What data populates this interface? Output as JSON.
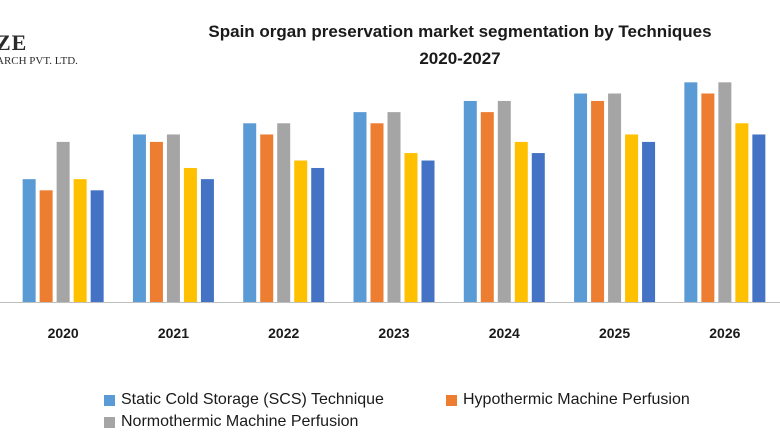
{
  "logo": {
    "main": "ZE",
    "sub": "ARCH PVT. LTD."
  },
  "chart_data": {
    "type": "bar",
    "title_lines": [
      "Spain organ preservation market segmentation by Techniques",
      "2020-2027"
    ],
    "categories": [
      "2020",
      "2021",
      "2022",
      "2023",
      "2024",
      "2025",
      "2026"
    ],
    "series": [
      {
        "name": "Static Cold Storage (SCS) Technique",
        "color": "#5b9bd5",
        "values": [
          33,
          45,
          48,
          51,
          54,
          56,
          59
        ]
      },
      {
        "name": "Hypothermic Machine Perfusion",
        "color": "#ed7d31",
        "values": [
          30,
          43,
          45,
          48,
          51,
          54,
          56
        ]
      },
      {
        "name": "Normothermic Machine Perfusion",
        "color": "#a5a5a5",
        "values": [
          43,
          45,
          48,
          51,
          54,
          56,
          59
        ]
      },
      {
        "name": "",
        "color": "#ffc000",
        "values": [
          33,
          36,
          38,
          40,
          43,
          45,
          48
        ]
      },
      {
        "name": "",
        "color": "#4472c4",
        "values": [
          30,
          33,
          36,
          38,
          40,
          43,
          45
        ]
      }
    ],
    "ylim": [
      0,
      65
    ],
    "xlabel": "",
    "ylabel": "",
    "grid": false
  }
}
